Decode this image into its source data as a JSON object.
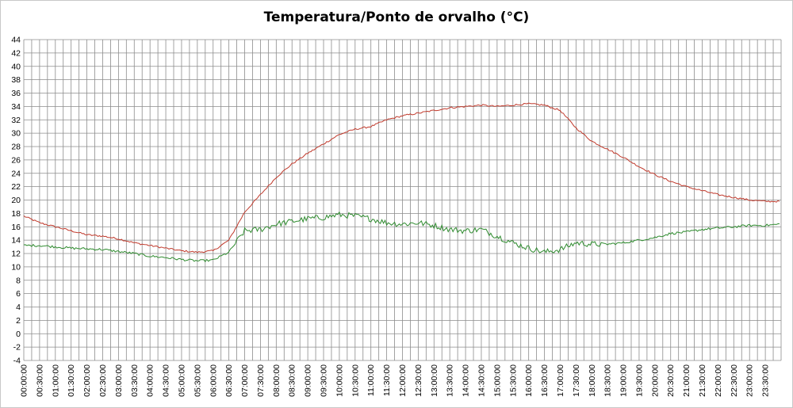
{
  "chart_data": {
    "type": "line",
    "title": "Temperatura/Ponto de orvalho (°C)",
    "xlabel": "",
    "ylabel": "",
    "ylim": [
      -4,
      44
    ],
    "y_ticks": [
      -4,
      -2,
      0,
      2,
      4,
      6,
      8,
      10,
      12,
      14,
      16,
      18,
      20,
      22,
      24,
      26,
      28,
      30,
      32,
      34,
      36,
      38,
      40,
      42,
      44
    ],
    "x_tick_labels": [
      "00:00:00",
      "00:30:00",
      "01:00:00",
      "01:30:00",
      "02:00:00",
      "02:30:00",
      "03:00:00",
      "03:30:00",
      "04:00:00",
      "04:30:00",
      "05:00:00",
      "05:30:00",
      "06:00:00",
      "06:30:00",
      "07:00:00",
      "07:30:00",
      "08:00:00",
      "08:30:00",
      "09:00:00",
      "09:30:00",
      "10:00:00",
      "10:30:00",
      "11:00:00",
      "11:30:00",
      "12:00:00",
      "12:30:00",
      "13:00:00",
      "13:30:00",
      "14:00:00",
      "14:30:00",
      "15:00:00",
      "15:30:00",
      "16:00:00",
      "16:30:00",
      "17:00:00",
      "17:30:00",
      "18:00:00",
      "18:30:00",
      "19:00:00",
      "19:30:00",
      "20:00:00",
      "20:30:00",
      "21:00:00",
      "21:30:00",
      "22:00:00",
      "22:30:00",
      "23:00:00",
      "23:30:00"
    ],
    "grid": true,
    "legend": "none",
    "x": [
      "00:00:00",
      "00:30:00",
      "01:00:00",
      "01:30:00",
      "02:00:00",
      "02:30:00",
      "03:00:00",
      "03:30:00",
      "04:00:00",
      "04:30:00",
      "05:00:00",
      "05:30:00",
      "06:00:00",
      "06:30:00",
      "07:00:00",
      "07:30:00",
      "08:00:00",
      "08:30:00",
      "09:00:00",
      "09:30:00",
      "10:00:00",
      "10:30:00",
      "11:00:00",
      "11:30:00",
      "12:00:00",
      "12:30:00",
      "13:00:00",
      "13:30:00",
      "14:00:00",
      "14:30:00",
      "15:00:00",
      "15:30:00",
      "16:00:00",
      "16:30:00",
      "17:00:00",
      "17:30:00",
      "18:00:00",
      "18:30:00",
      "19:00:00",
      "19:30:00",
      "20:00:00",
      "20:30:00",
      "21:00:00",
      "21:30:00",
      "22:00:00",
      "22:30:00",
      "23:00:00",
      "23:30:00",
      "23:59:00"
    ],
    "series": [
      {
        "color": "#c0392b",
        "values": [
          17.6,
          16.6,
          16.0,
          15.4,
          14.8,
          14.6,
          14.2,
          13.6,
          13.2,
          12.8,
          12.4,
          12.2,
          12.4,
          14.0,
          18.2,
          20.8,
          23.4,
          25.4,
          27.0,
          28.4,
          29.8,
          30.6,
          31.0,
          32.0,
          32.6,
          33.0,
          33.4,
          33.8,
          34.0,
          34.2,
          34.0,
          34.2,
          34.4,
          34.2,
          33.4,
          30.8,
          28.8,
          27.6,
          26.4,
          25.0,
          23.8,
          22.8,
          22.0,
          21.4,
          20.8,
          20.4,
          20.0,
          19.8,
          19.8
        ]
      },
      {
        "color": "#2e8b2e",
        "values": [
          13.2,
          13.2,
          13.0,
          12.8,
          12.7,
          12.6,
          12.3,
          12.0,
          11.6,
          11.4,
          11.1,
          10.9,
          11.0,
          12.2,
          15.4,
          15.6,
          16.4,
          16.8,
          17.2,
          17.4,
          17.8,
          17.6,
          17.2,
          16.6,
          16.4,
          16.6,
          16.2,
          15.6,
          15.4,
          15.6,
          14.6,
          13.6,
          12.8,
          12.2,
          12.6,
          13.6,
          13.4,
          13.4,
          13.6,
          14.0,
          14.4,
          15.0,
          15.2,
          15.6,
          15.8,
          16.0,
          16.2,
          16.2,
          16.4
        ]
      }
    ]
  }
}
